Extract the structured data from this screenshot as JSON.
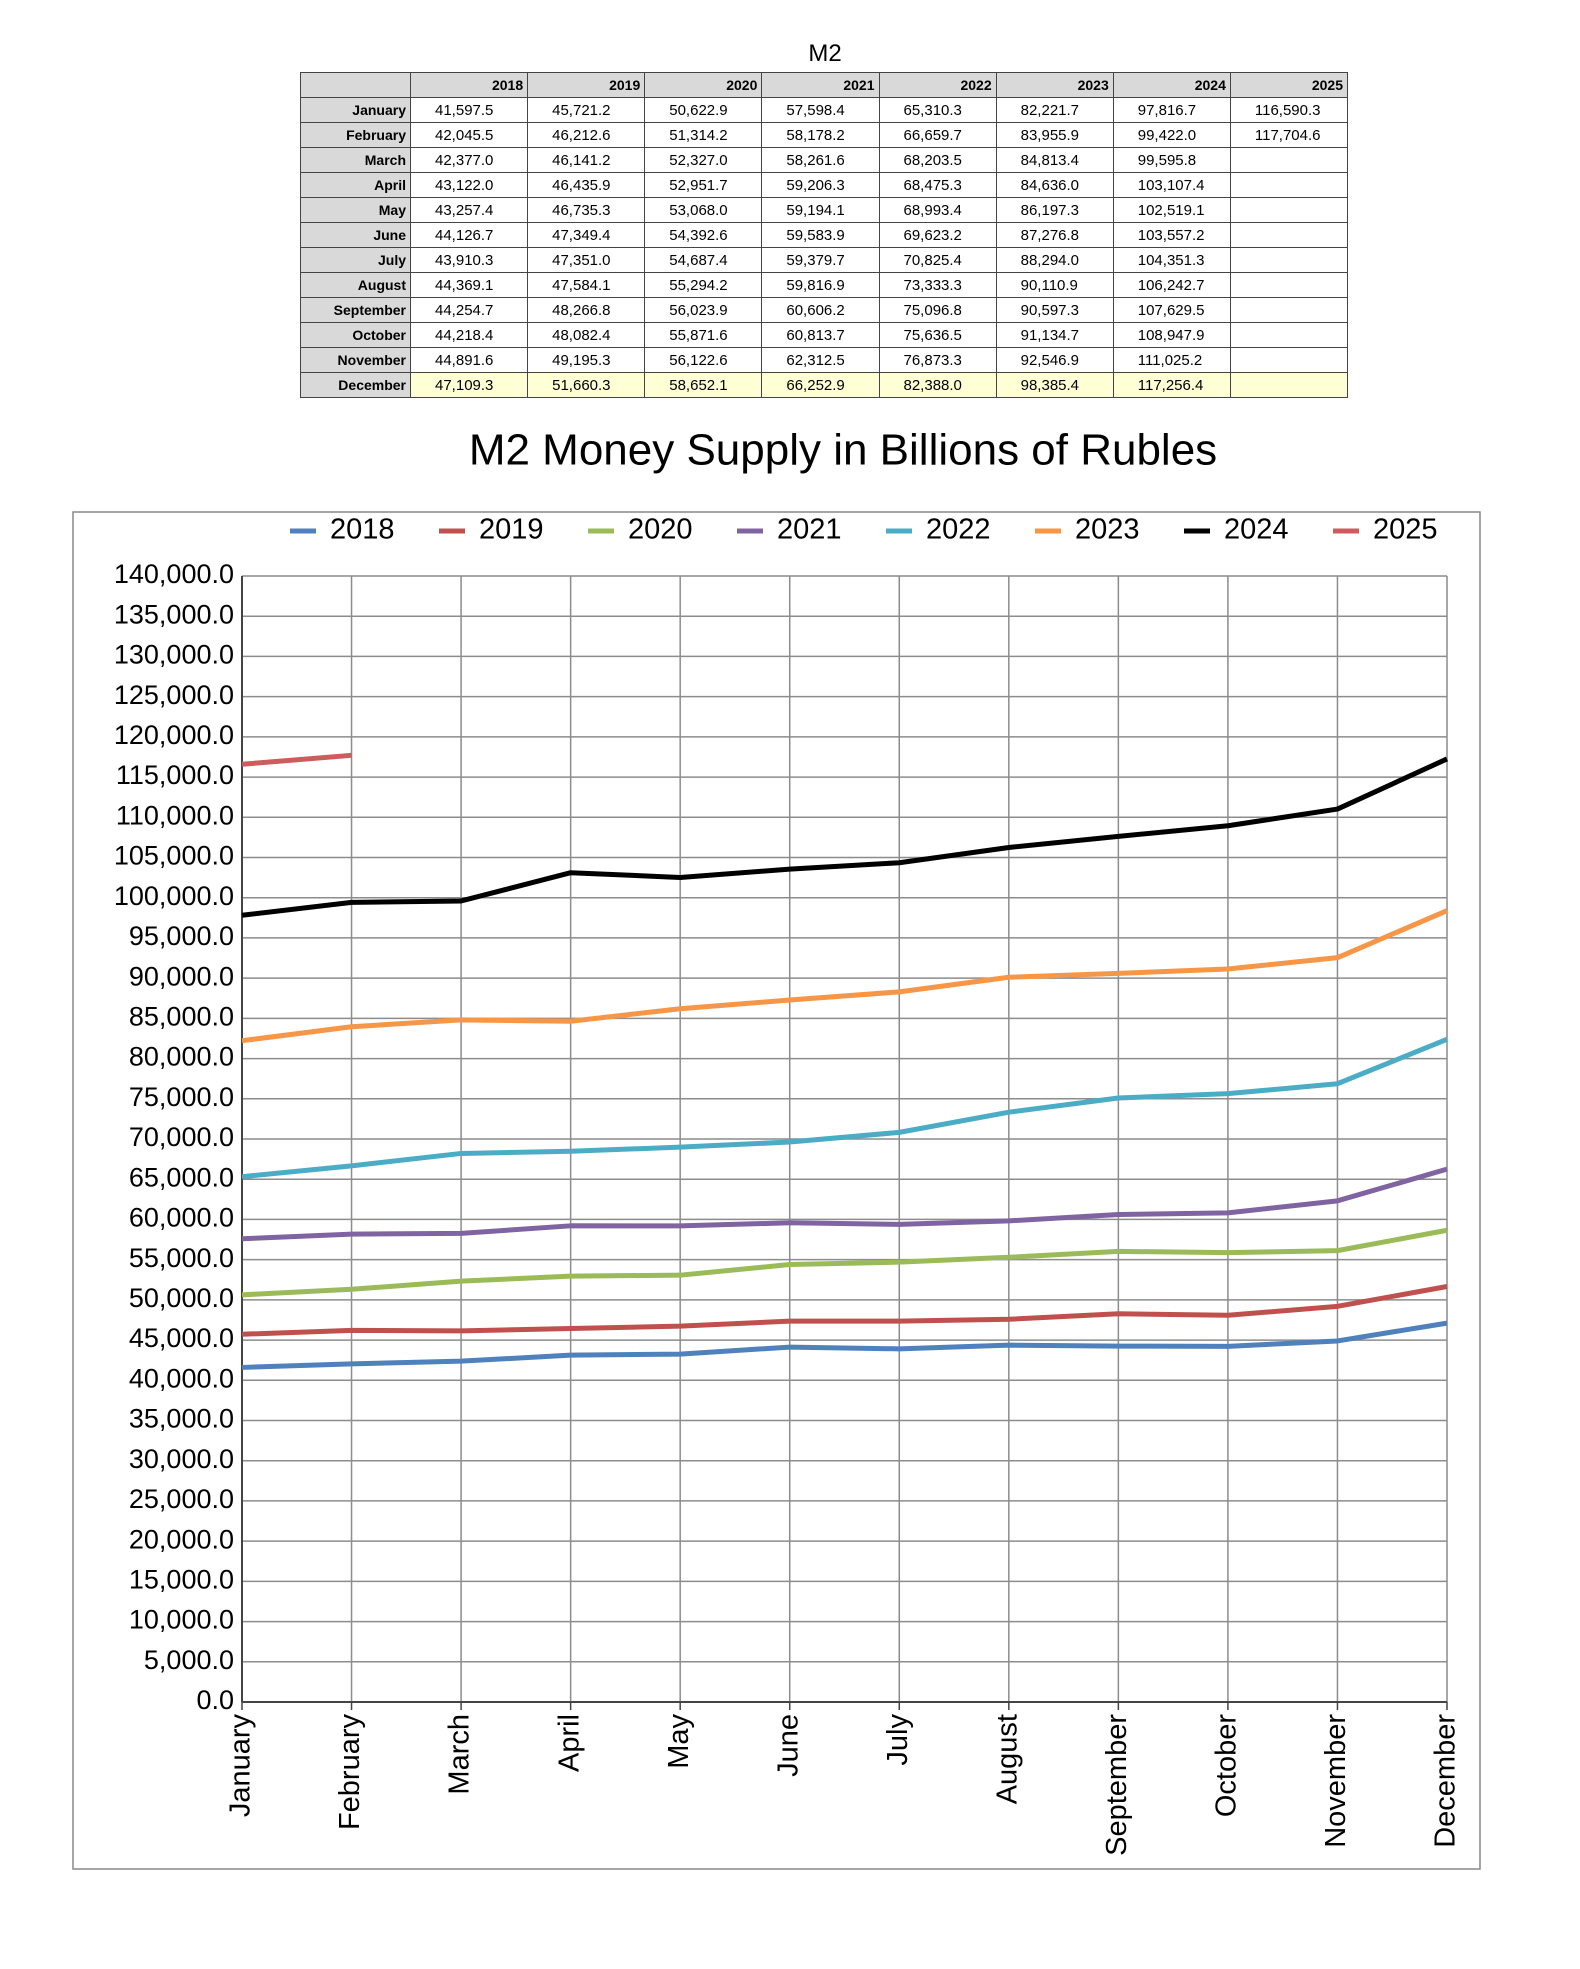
{
  "table": {
    "title": "M2",
    "columns": [
      "2018",
      "2019",
      "2020",
      "2021",
      "2022",
      "2023",
      "2024",
      "2025"
    ],
    "rows": [
      {
        "label": "January",
        "cells": [
          "41,597.5",
          "45,721.2",
          "50,622.9",
          "57,598.4",
          "65,310.3",
          "82,221.7",
          "97,816.7",
          "116,590.3"
        ]
      },
      {
        "label": "February",
        "cells": [
          "42,045.5",
          "46,212.6",
          "51,314.2",
          "58,178.2",
          "66,659.7",
          "83,955.9",
          "99,422.0",
          "117,704.6"
        ]
      },
      {
        "label": "March",
        "cells": [
          "42,377.0",
          "46,141.2",
          "52,327.0",
          "58,261.6",
          "68,203.5",
          "84,813.4",
          "99,595.8"
        ]
      },
      {
        "label": "April",
        "cells": [
          "43,122.0",
          "46,435.9",
          "52,951.7",
          "59,206.3",
          "68,475.3",
          "84,636.0",
          "103,107.4"
        ]
      },
      {
        "label": "May",
        "cells": [
          "43,257.4",
          "46,735.3",
          "53,068.0",
          "59,194.1",
          "68,993.4",
          "86,197.3",
          "102,519.1"
        ]
      },
      {
        "label": "June",
        "cells": [
          "44,126.7",
          "47,349.4",
          "54,392.6",
          "59,583.9",
          "69,623.2",
          "87,276.8",
          "103,557.2"
        ]
      },
      {
        "label": "July",
        "cells": [
          "43,910.3",
          "47,351.0",
          "54,687.4",
          "59,379.7",
          "70,825.4",
          "88,294.0",
          "104,351.3"
        ]
      },
      {
        "label": "August",
        "cells": [
          "44,369.1",
          "47,584.1",
          "55,294.2",
          "59,816.9",
          "73,333.3",
          "90,110.9",
          "106,242.7"
        ]
      },
      {
        "label": "September",
        "cells": [
          "44,254.7",
          "48,266.8",
          "56,023.9",
          "60,606.2",
          "75,096.8",
          "90,597.3",
          "107,629.5"
        ]
      },
      {
        "label": "October",
        "cells": [
          "44,218.4",
          "48,082.4",
          "55,871.6",
          "60,813.7",
          "75,636.5",
          "91,134.7",
          "108,947.9"
        ]
      },
      {
        "label": "November",
        "cells": [
          "44,891.6",
          "49,195.3",
          "56,122.6",
          "62,312.5",
          "76,873.3",
          "92,546.9",
          "111,025.2"
        ]
      },
      {
        "label": "December",
        "cells": [
          "47,109.3",
          "51,660.3",
          "58,652.1",
          "66,252.9",
          "82,388.0",
          "98,385.4",
          "117,256.4"
        ]
      }
    ]
  },
  "chart_data": {
    "type": "line",
    "title": "M2 Money Supply in Billions of Rubles",
    "categories": [
      "January",
      "February",
      "March",
      "April",
      "May",
      "June",
      "July",
      "August",
      "September",
      "October",
      "November",
      "December"
    ],
    "series": [
      {
        "name": "2018",
        "color": "#4f81bd",
        "values": [
          41597.5,
          42045.5,
          42377.0,
          43122.0,
          43257.4,
          44126.7,
          43910.3,
          44369.1,
          44254.7,
          44218.4,
          44891.6,
          47109.3
        ]
      },
      {
        "name": "2019",
        "color": "#c0504d",
        "values": [
          45721.2,
          46212.6,
          46141.2,
          46435.9,
          46735.3,
          47349.4,
          47351.0,
          47584.1,
          48266.8,
          48082.4,
          49195.3,
          51660.3
        ]
      },
      {
        "name": "2020",
        "color": "#9bbb59",
        "values": [
          50622.9,
          51314.2,
          52327.0,
          52951.7,
          53068.0,
          54392.6,
          54687.4,
          55294.2,
          56023.9,
          55871.6,
          56122.6,
          58652.1
        ]
      },
      {
        "name": "2021",
        "color": "#8064a2",
        "values": [
          57598.4,
          58178.2,
          58261.6,
          59206.3,
          59194.1,
          59583.9,
          59379.7,
          59816.9,
          60606.2,
          60813.7,
          62312.5,
          66252.9
        ]
      },
      {
        "name": "2022",
        "color": "#4bacc6",
        "values": [
          65310.3,
          66659.7,
          68203.5,
          68475.3,
          68993.4,
          69623.2,
          70825.4,
          73333.3,
          75096.8,
          75636.5,
          76873.3,
          82388.0
        ]
      },
      {
        "name": "2023",
        "color": "#f79646",
        "values": [
          82221.7,
          83955.9,
          84813.4,
          84636.0,
          86197.3,
          87276.8,
          88294.0,
          90110.9,
          90597.3,
          91134.7,
          92546.9,
          98385.4
        ]
      },
      {
        "name": "2024",
        "color": "#000000",
        "values": [
          97816.7,
          99422.0,
          99595.8,
          103107.4,
          102519.1,
          103557.2,
          104351.3,
          106242.7,
          107629.5,
          108947.9,
          111025.2,
          117256.4
        ]
      },
      {
        "name": "2025",
        "color": "#cd5c5c",
        "values": [
          116590.3,
          117704.6,
          null,
          null,
          null,
          null,
          null,
          null,
          null,
          null,
          null,
          null
        ]
      }
    ],
    "ylim": [
      0,
      140000
    ],
    "yticks": [
      {
        "value": 0,
        "label": "0.0"
      },
      {
        "value": 5000,
        "label": "5,000.0"
      },
      {
        "value": 10000,
        "label": "10,000.0"
      },
      {
        "value": 15000,
        "label": "15,000.0"
      },
      {
        "value": 20000,
        "label": "20,000.0"
      },
      {
        "value": 25000,
        "label": "25,000.0"
      },
      {
        "value": 30000,
        "label": "30,000.0"
      },
      {
        "value": 35000,
        "label": "35,000.0"
      },
      {
        "value": 40000,
        "label": "40,000.0"
      },
      {
        "value": 45000,
        "label": "45,000.0"
      },
      {
        "value": 50000,
        "label": "50,000.0"
      },
      {
        "value": 55000,
        "label": "55,000.0"
      },
      {
        "value": 60000,
        "label": "60,000.0"
      },
      {
        "value": 65000,
        "label": "65,000.0"
      },
      {
        "value": 70000,
        "label": "70,000.0"
      },
      {
        "value": 75000,
        "label": "75,000.0"
      },
      {
        "value": 80000,
        "label": "80,000.0"
      },
      {
        "value": 85000,
        "label": "85,000.0"
      },
      {
        "value": 90000,
        "label": "90,000.0"
      },
      {
        "value": 95000,
        "label": "95,000.0"
      },
      {
        "value": 100000,
        "label": "100,000.0"
      },
      {
        "value": 105000,
        "label": "105,000.0"
      },
      {
        "value": 110000,
        "label": "110,000.0"
      },
      {
        "value": 115000,
        "label": "115,000.0"
      },
      {
        "value": 120000,
        "label": "120,000.0"
      },
      {
        "value": 125000,
        "label": "125,000.0"
      },
      {
        "value": 130000,
        "label": "130,000.0"
      },
      {
        "value": 135000,
        "label": "135,000.0"
      },
      {
        "value": 140000,
        "label": "140,000.0"
      }
    ],
    "grid": true,
    "legend": "top"
  }
}
